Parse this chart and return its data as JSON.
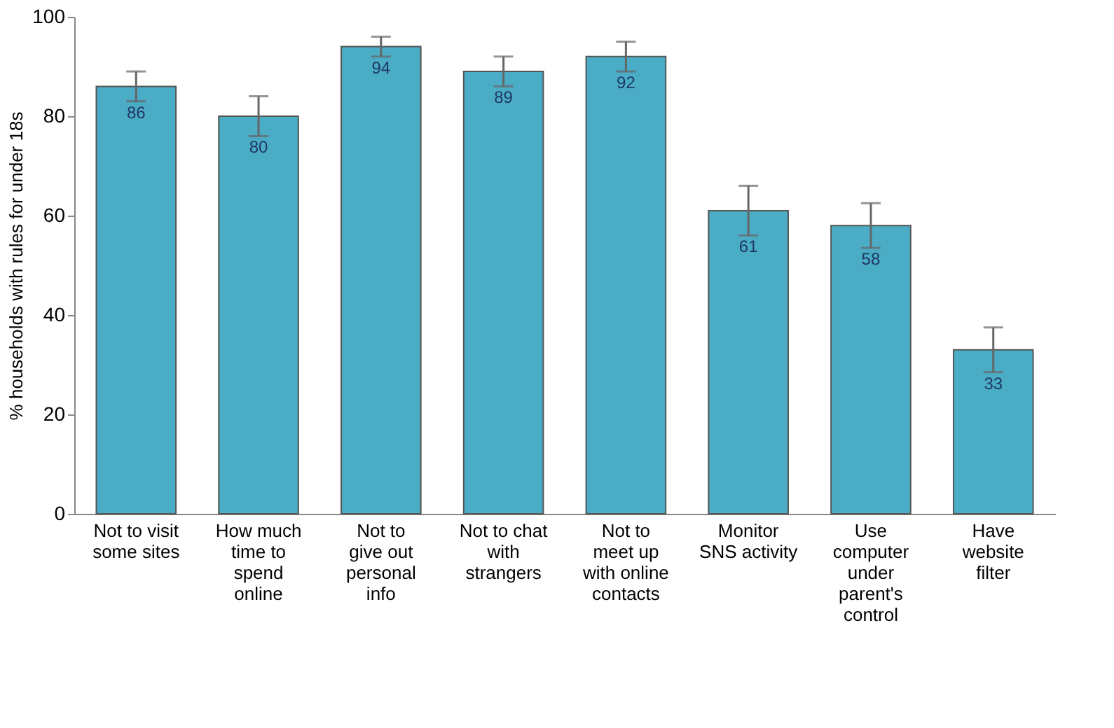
{
  "chart_data": {
    "type": "bar",
    "ylabel": "% households with rules for under 18s",
    "categories": [
      "Not to visit\nsome sites",
      "How much\ntime to\nspend\nonline",
      "Not to\ngive out\npersonal\ninfo",
      "Not to chat\nwith\nstrangers",
      "Not to\nmeet up\nwith online\ncontacts",
      "Monitor\nSNS activity",
      "Use\ncomputer\nunder\nparent's\ncontrol",
      "Have\nwebsite\nfilter"
    ],
    "values": [
      86,
      80,
      94,
      89,
      92,
      61,
      58,
      33
    ],
    "errors": [
      3,
      4,
      2,
      3,
      3,
      5,
      4.5,
      4.5
    ],
    "color": "#4bacc6",
    "data_labels": true,
    "ylim": [
      0,
      100
    ],
    "yticks": [
      0,
      20,
      40,
      60,
      80,
      100
    ],
    "grid": false
  }
}
